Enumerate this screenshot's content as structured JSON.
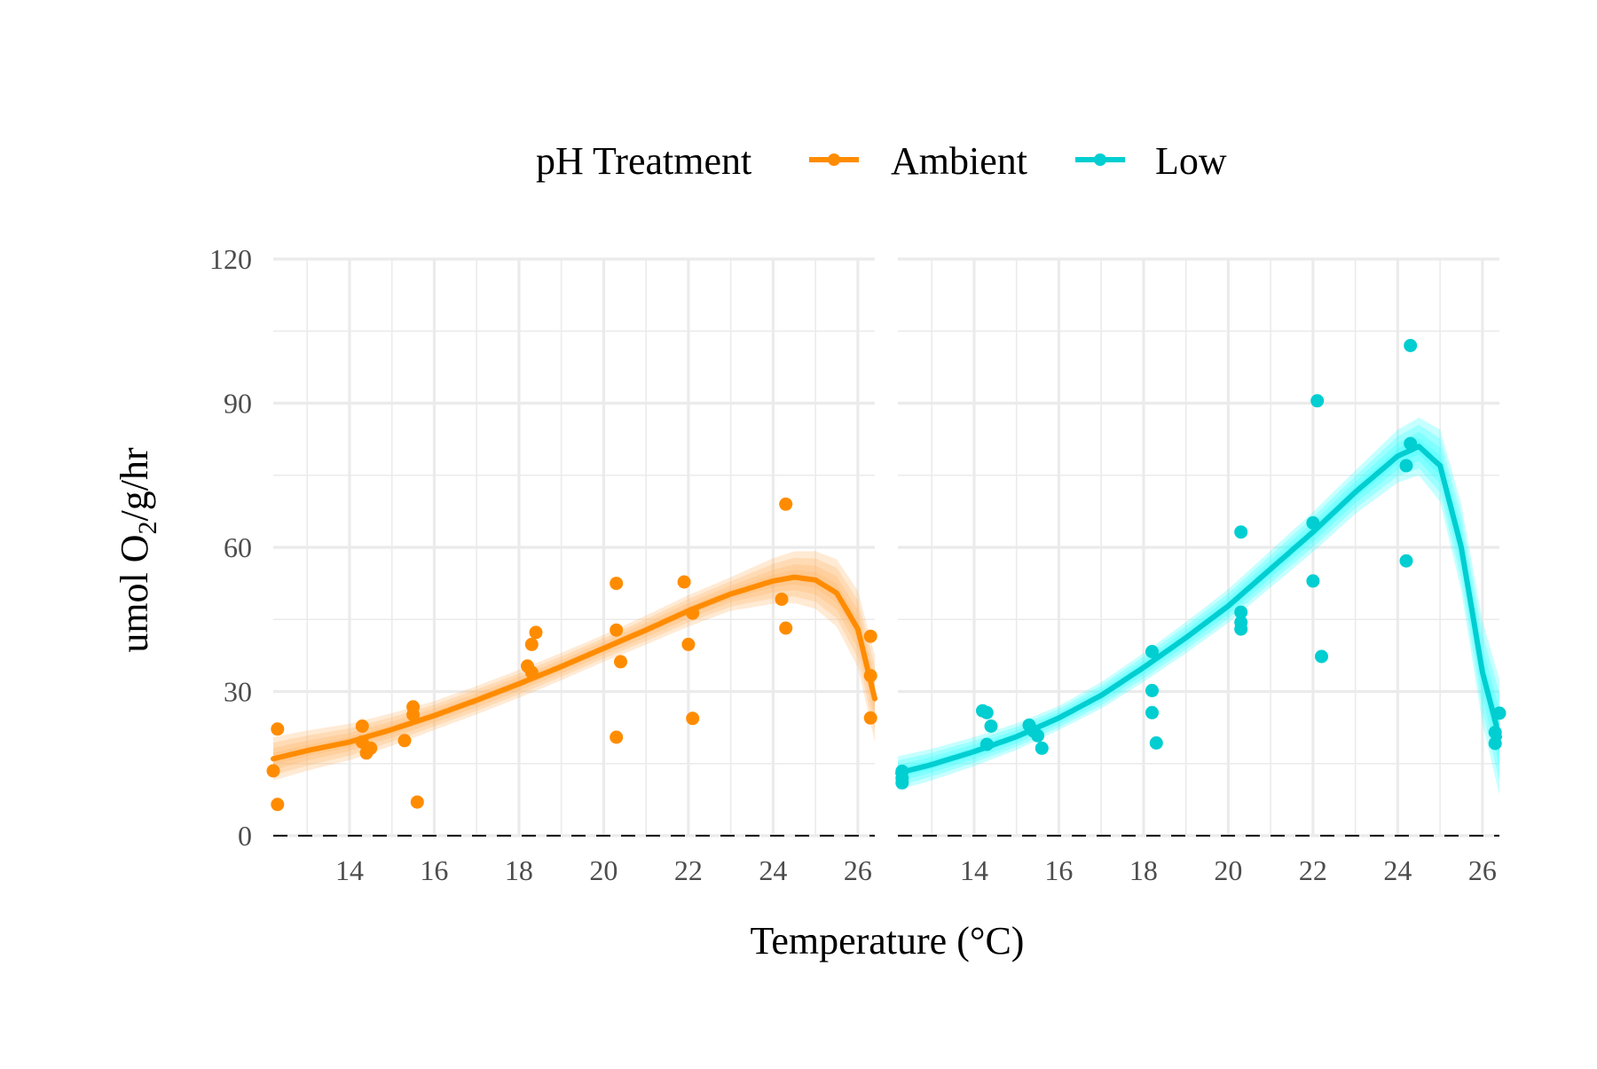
{
  "chart_data": {
    "type": "scatter",
    "legend": {
      "title": "pH Treatment",
      "position": "top",
      "entries": [
        {
          "label": "Ambient",
          "color": "#FF8C00"
        },
        {
          "label": "Low",
          "color": "#00CED1"
        }
      ]
    },
    "xlabel": "Temperature (°C)",
    "ylabel_main": "umol O",
    "ylabel_sub": "2",
    "ylabel_rest": "/g/hr",
    "xlim": [
      12.2,
      26.4
    ],
    "ylim": [
      0,
      120
    ],
    "x_ticks": [
      14,
      16,
      18,
      20,
      22,
      24,
      26
    ],
    "x_tick_labels": [
      "14",
      "16",
      "18",
      "20",
      "22",
      "24",
      "26"
    ],
    "y_ticks": [
      0,
      30,
      60,
      90,
      120
    ],
    "y_tick_labels": [
      "0",
      "30",
      "60",
      "90",
      "120"
    ],
    "grid": true,
    "reference_line": {
      "y": 0,
      "style": "dashed"
    },
    "panels": [
      {
        "series": "Ambient",
        "color": "#FF8C00",
        "ribbon_color": "#FFB266",
        "points": [
          [
            12.2,
            13.5
          ],
          [
            12.3,
            22.2
          ],
          [
            12.3,
            6.5
          ],
          [
            14.3,
            22.8
          ],
          [
            14.3,
            19.5
          ],
          [
            14.4,
            17.2
          ],
          [
            14.5,
            18.2
          ],
          [
            15.3,
            19.8
          ],
          [
            15.5,
            26.8
          ],
          [
            15.5,
            25.2
          ],
          [
            15.6,
            7.0
          ],
          [
            18.2,
            35.3
          ],
          [
            18.3,
            34.0
          ],
          [
            18.3,
            39.8
          ],
          [
            18.4,
            42.3
          ],
          [
            20.3,
            20.5
          ],
          [
            20.3,
            52.5
          ],
          [
            20.3,
            42.8
          ],
          [
            20.4,
            36.2
          ],
          [
            21.9,
            52.8
          ],
          [
            22.0,
            39.8
          ],
          [
            22.1,
            46.3
          ],
          [
            22.1,
            24.4
          ],
          [
            24.2,
            49.2
          ],
          [
            24.3,
            69.0
          ],
          [
            24.3,
            43.2
          ],
          [
            26.3,
            41.5
          ],
          [
            26.3,
            33.3
          ],
          [
            26.3,
            24.5
          ]
        ],
        "fit": [
          [
            12.2,
            16.0
          ],
          [
            13,
            17.7
          ],
          [
            14,
            19.5
          ],
          [
            15,
            22.1
          ],
          [
            16,
            25.0
          ],
          [
            17,
            28.2
          ],
          [
            18,
            31.6
          ],
          [
            19,
            35.2
          ],
          [
            20,
            39.0
          ],
          [
            21,
            42.8
          ],
          [
            22,
            46.8
          ],
          [
            23,
            50.3
          ],
          [
            24,
            53.0
          ],
          [
            24.5,
            53.8
          ],
          [
            25,
            53.2
          ],
          [
            25.5,
            50.5
          ],
          [
            26,
            43.0
          ],
          [
            26.4,
            28.5
          ]
        ],
        "band_width": [
          [
            12.2,
            4.5
          ],
          [
            16,
            3.0
          ],
          [
            20,
            2.8
          ],
          [
            23,
            3.5
          ],
          [
            25,
            6.0
          ],
          [
            26,
            8.0
          ],
          [
            26.4,
            9.0
          ]
        ]
      },
      {
        "series": "Low",
        "color": "#00CED1",
        "ribbon_color": "#33FFFF",
        "points": [
          [
            12.3,
            13.4
          ],
          [
            12.3,
            12.0
          ],
          [
            12.3,
            11.0
          ],
          [
            14.2,
            26.0
          ],
          [
            14.3,
            25.6
          ],
          [
            14.3,
            19.0
          ],
          [
            14.4,
            22.8
          ],
          [
            15.3,
            23.0
          ],
          [
            15.4,
            21.8
          ],
          [
            15.5,
            20.8
          ],
          [
            15.6,
            18.2
          ],
          [
            18.2,
            38.3
          ],
          [
            18.2,
            30.2
          ],
          [
            18.2,
            25.6
          ],
          [
            18.3,
            19.3
          ],
          [
            20.3,
            63.2
          ],
          [
            20.3,
            43.0
          ],
          [
            20.3,
            44.4
          ],
          [
            20.3,
            46.5
          ],
          [
            22.0,
            65.1
          ],
          [
            22.0,
            53.0
          ],
          [
            22.1,
            90.5
          ],
          [
            22.2,
            37.3
          ],
          [
            24.2,
            77.0
          ],
          [
            24.2,
            57.2
          ],
          [
            24.3,
            81.6
          ],
          [
            24.3,
            102.0
          ],
          [
            26.3,
            21.5
          ],
          [
            26.3,
            19.2
          ],
          [
            26.4,
            25.5
          ]
        ],
        "fit": [
          [
            12.2,
            13.0
          ],
          [
            13,
            14.8
          ],
          [
            14,
            17.5
          ],
          [
            15,
            20.6
          ],
          [
            16,
            24.5
          ],
          [
            17,
            29.2
          ],
          [
            18,
            35.0
          ],
          [
            19,
            41.2
          ],
          [
            20,
            47.8
          ],
          [
            21,
            55.5
          ],
          [
            22,
            63.2
          ],
          [
            23,
            71.5
          ],
          [
            24,
            79.0
          ],
          [
            24.5,
            81.0
          ],
          [
            25,
            77.0
          ],
          [
            25.5,
            60.0
          ],
          [
            26,
            34.0
          ],
          [
            26.4,
            20.5
          ]
        ],
        "band_width": [
          [
            12.2,
            3.5
          ],
          [
            16,
            2.5
          ],
          [
            20,
            3.5
          ],
          [
            23,
            4.5
          ],
          [
            24.5,
            6.0
          ],
          [
            25.5,
            9.0
          ],
          [
            26.4,
            12.0
          ]
        ]
      }
    ]
  }
}
